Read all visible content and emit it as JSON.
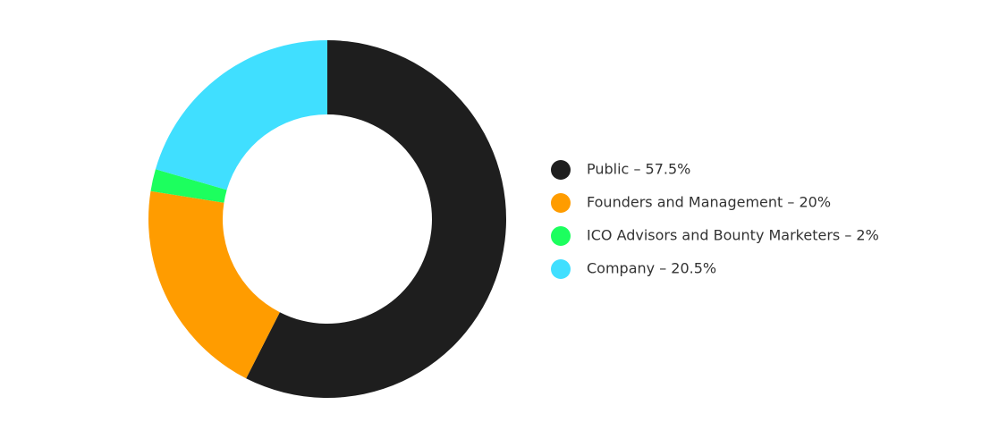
{
  "chart_data": {
    "type": "donut",
    "categories": [
      "Public – 57.5%",
      "Founders and Management – 20%",
      "ICO Advisors and Bounty Marketers – 2%",
      "Company – 20.5%"
    ],
    "values": [
      57.5,
      20,
      2,
      20.5
    ],
    "colors": [
      "#1e1e1e",
      "#ff9c00",
      "#1cff5e",
      "#40dfff"
    ],
    "legend": "right"
  }
}
